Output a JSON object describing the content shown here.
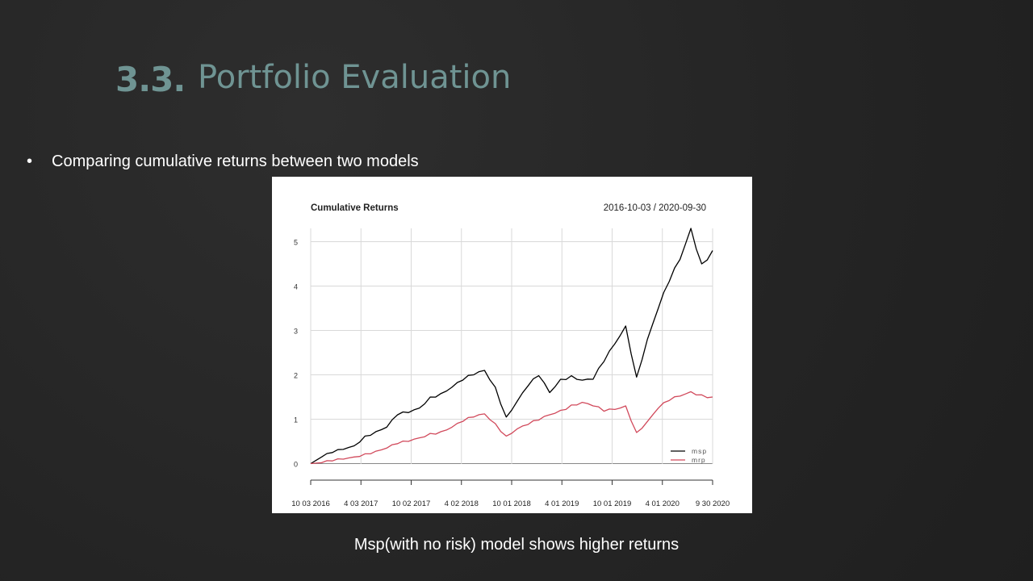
{
  "slide": {
    "number": "3.3.",
    "title": "Portfolio Evaluation",
    "bullet": "Comparing cumulative returns between two models",
    "caption": "Msp(with no risk) model shows higher returns",
    "accent_color": "#6f9493"
  },
  "chart_data": {
    "type": "line",
    "title": "Cumulative Returns",
    "date_range": "2016-10-03 / 2020-09-30",
    "xlabel": "",
    "ylabel": "",
    "x_ticks": [
      "10 03 2016",
      "4 03 2017",
      "10 02 2017",
      "4 02 2018",
      "10 01 2018",
      "4 01 2019",
      "10 01 2019",
      "4 01 2020",
      "9 30 2020"
    ],
    "y_ticks": [
      0,
      1,
      2,
      3,
      4,
      5
    ],
    "ylim": [
      -0.3,
      5.3
    ],
    "grid": true,
    "legend_position": "bottom-right",
    "series": [
      {
        "name": "msp",
        "color": "#000000",
        "values": [
          0,
          0.15,
          0.25,
          0.32,
          0.4,
          0.62,
          0.72,
          0.82,
          1.1,
          1.15,
          1.25,
          1.5,
          1.58,
          1.72,
          1.88,
          2.0,
          2.1,
          1.72,
          1.05,
          1.4,
          1.75,
          1.98,
          1.6,
          1.9,
          1.98,
          1.88,
          1.9,
          2.3,
          2.7,
          3.1,
          1.95,
          2.8,
          3.5,
          4.1,
          4.6,
          5.3,
          4.5,
          4.8
        ]
      },
      {
        "name": "mrp",
        "color": "#d1495b",
        "values": [
          0,
          0.02,
          0.06,
          0.1,
          0.15,
          0.22,
          0.28,
          0.35,
          0.45,
          0.5,
          0.58,
          0.68,
          0.72,
          0.82,
          0.95,
          1.05,
          1.12,
          0.9,
          0.62,
          0.78,
          0.88,
          0.98,
          1.1,
          1.2,
          1.32,
          1.38,
          1.3,
          1.18,
          1.22,
          1.3,
          0.7,
          0.95,
          1.25,
          1.42,
          1.52,
          1.62,
          1.55,
          1.5
        ]
      }
    ]
  }
}
